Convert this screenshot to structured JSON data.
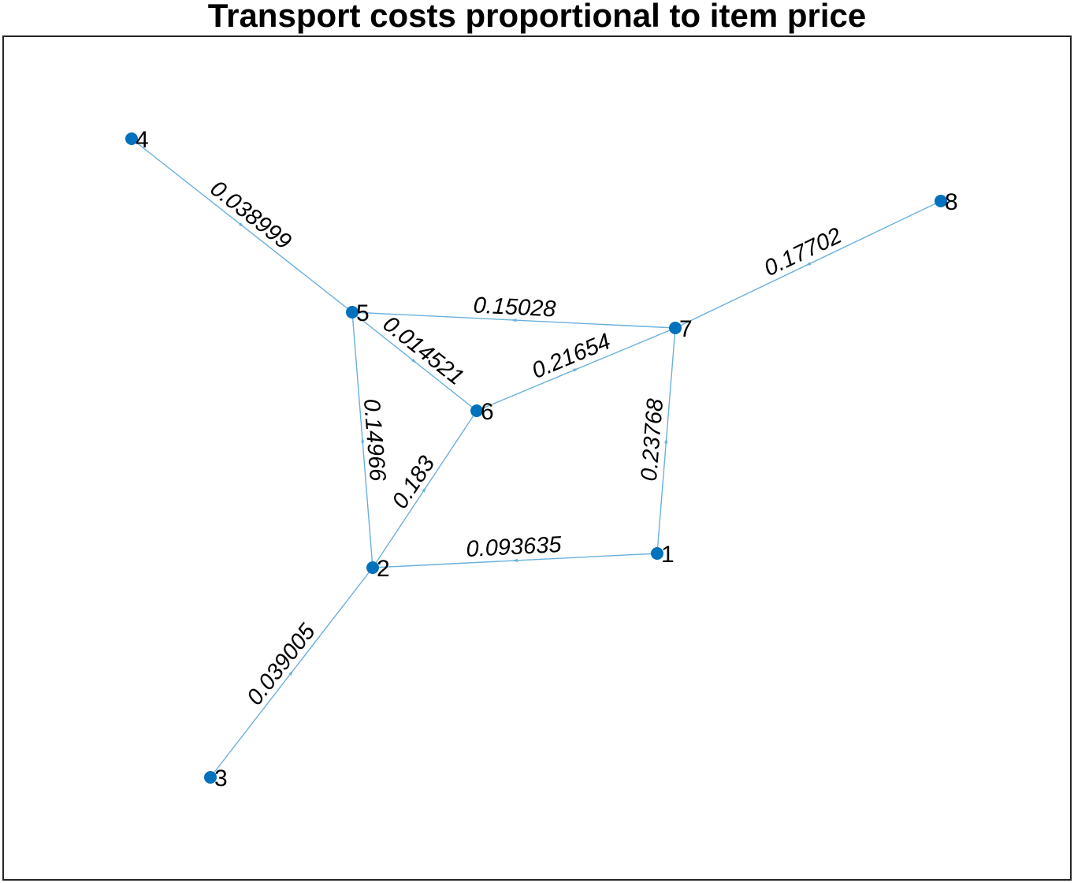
{
  "title": "Transport costs proportional to item price",
  "colors": {
    "node": "#0072bd",
    "edge": "#6ab0de",
    "frame": "#262626"
  },
  "nodes": [
    {
      "id": "1",
      "label": "1"
    },
    {
      "id": "2",
      "label": "2"
    },
    {
      "id": "3",
      "label": "3"
    },
    {
      "id": "4",
      "label": "4"
    },
    {
      "id": "5",
      "label": "5"
    },
    {
      "id": "6",
      "label": "6"
    },
    {
      "id": "7",
      "label": "7"
    },
    {
      "id": "8",
      "label": "8"
    }
  ],
  "edges": [
    {
      "source": "4",
      "target": "5",
      "weight": "0.038999"
    },
    {
      "source": "8",
      "target": "7",
      "weight": "0.17702"
    },
    {
      "source": "7",
      "target": "5",
      "weight": "0.15028"
    },
    {
      "source": "5",
      "target": "6",
      "weight": "0.014521"
    },
    {
      "source": "6",
      "target": "7",
      "weight": "0.21654"
    },
    {
      "source": "2",
      "target": "5",
      "weight": "0.14966"
    },
    {
      "source": "2",
      "target": "6",
      "weight": "0.183"
    },
    {
      "source": "1",
      "target": "7",
      "weight": "0.23768"
    },
    {
      "source": "1",
      "target": "2",
      "weight": "0.093635"
    },
    {
      "source": "3",
      "target": "2",
      "weight": "0.039005"
    }
  ]
}
